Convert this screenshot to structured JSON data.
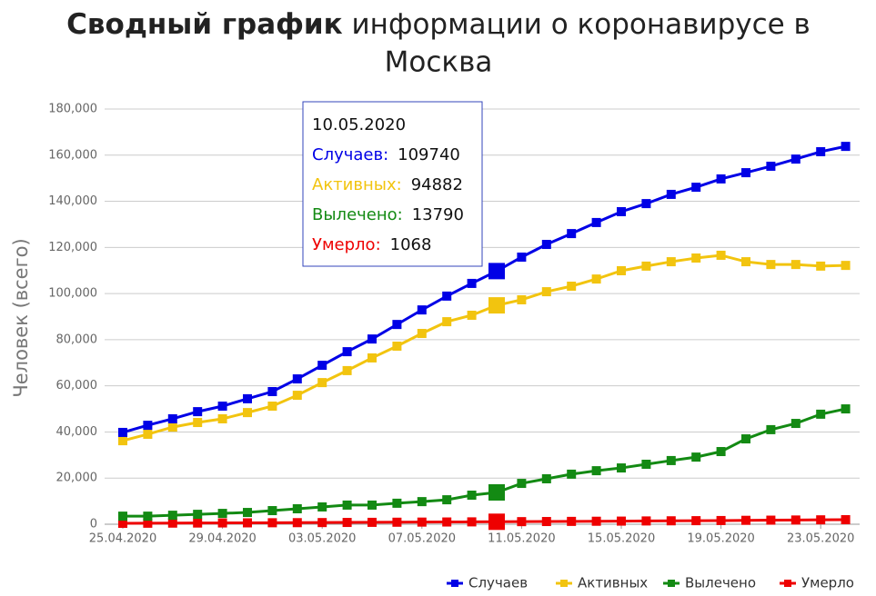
{
  "chart_data": {
    "type": "line",
    "title_bold": "Сводный график",
    "title_rest": "информации о коронавирусе в",
    "title_line2": "Москва",
    "y_label": "Человек (всего)",
    "categories": [
      "25.04.2020",
      null,
      null,
      null,
      "29.04.2020",
      null,
      null,
      null,
      "03.05.2020",
      null,
      null,
      null,
      "07.05.2020",
      null,
      null,
      null,
      "11.05.2020",
      null,
      null,
      null,
      "15.05.2020",
      null,
      null,
      null,
      "19.05.2020",
      null,
      null,
      null,
      "23.05.2020",
      null
    ],
    "ylim": [
      0,
      180000
    ],
    "yticks": [
      0,
      {
        "value": 20000,
        "label": "20,000"
      },
      {
        "value": 40000,
        "label": "40,000"
      },
      {
        "value": 60000,
        "label": "60,000"
      },
      {
        "value": 80000,
        "label": "80,000"
      },
      {
        "value": 100000,
        "label": "100,000"
      },
      {
        "value": 120000,
        "label": "120,000"
      },
      {
        "value": 140000,
        "label": "140,000"
      },
      {
        "value": 160000,
        "label": "160,000"
      },
      {
        "value": 180000,
        "label": "180,000"
      }
    ],
    "grid": true,
    "series": [
      {
        "name": "Случаев",
        "color": "#0000e6",
        "values": [
          39800,
          42900,
          45700,
          48800,
          51200,
          54400,
          57500,
          63000,
          68900,
          74800,
          80300,
          86600,
          92900,
          98900,
          104400,
          109740,
          115800,
          121300,
          126000,
          130800,
          135500,
          139000,
          143000,
          146100,
          149700,
          152400,
          155200,
          158300,
          161500,
          163800
        ]
      },
      {
        "name": "Активных",
        "color": "#f2c40f",
        "values": [
          36200,
          39000,
          42100,
          44100,
          45700,
          48400,
          51200,
          55900,
          61400,
          66600,
          72100,
          77200,
          82700,
          87800,
          90600,
          94882,
          97300,
          100800,
          103200,
          106300,
          109900,
          111900,
          113800,
          115400,
          116600,
          113800,
          112600,
          112600,
          111900,
          112200
        ]
      },
      {
        "name": "Вылечено",
        "color": "#138a13",
        "values": [
          3500,
          3500,
          3900,
          4300,
          4700,
          5100,
          5900,
          6700,
          7500,
          8300,
          8300,
          9100,
          9800,
          10600,
          12600,
          13790,
          17700,
          19700,
          21700,
          23200,
          24400,
          26000,
          27600,
          29100,
          31500,
          37000,
          41000,
          43700,
          47700,
          50000
        ]
      },
      {
        "name": "Умерло",
        "color": "#ee0000",
        "values": [
          400,
          440,
          480,
          520,
          560,
          600,
          640,
          680,
          720,
          770,
          820,
          870,
          920,
          970,
          1020,
          1068,
          1120,
          1170,
          1230,
          1290,
          1350,
          1420,
          1480,
          1540,
          1600,
          1690,
          1760,
          1830,
          1900,
          1970
        ]
      }
    ],
    "tooltip": {
      "date": "10.05.2020",
      "index": 15,
      "labels": [
        "Случаев:",
        "Активных:",
        "Вылечено:",
        "Умерло:"
      ]
    },
    "legend": "bottom-right"
  }
}
